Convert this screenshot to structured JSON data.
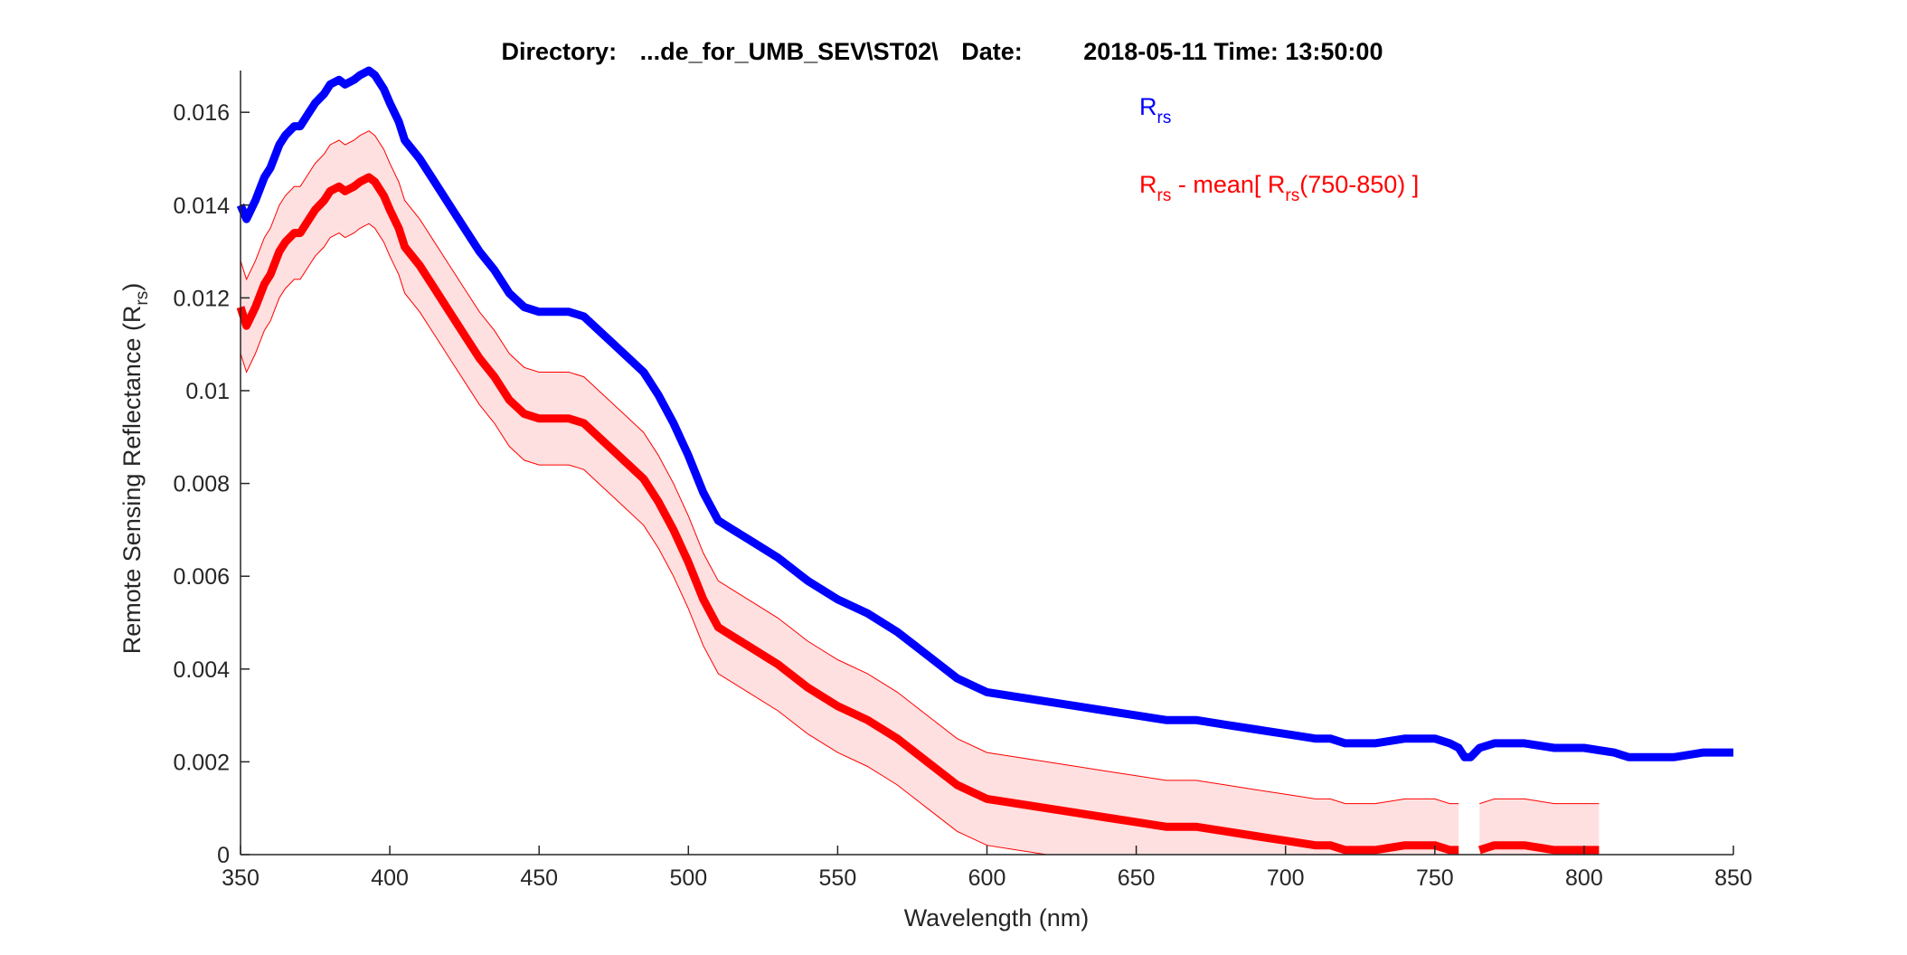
{
  "chart_data": {
    "type": "line",
    "title": {
      "directory_label": "Directory:",
      "directory_value": "...de_for_UMB_SEV\\ST02\\",
      "date_label": "Date:",
      "date_value": "2018-05-11 Time: 13:50:00"
    },
    "xlabel": "Wavelength (nm)",
    "ylabel": {
      "main": "Remote Sensing Reflectance (R",
      "sub": "rs",
      "close": ")"
    },
    "xlim": [
      350,
      850
    ],
    "ylim": [
      0,
      0.0169
    ],
    "xticks": [
      350,
      400,
      450,
      500,
      550,
      600,
      650,
      700,
      750,
      800,
      850
    ],
    "xtick_labels": [
      "350",
      "400",
      "450",
      "500",
      "550",
      "600",
      "650",
      "700",
      "750",
      "800",
      "850"
    ],
    "yticks": [
      0,
      0.002,
      0.004,
      0.006,
      0.008,
      0.01,
      0.012,
      0.014,
      0.016
    ],
    "ytick_labels": [
      "0",
      "0.002",
      "0.004",
      "0.006",
      "0.008",
      "0.01",
      "0.012",
      "0.014",
      "0.016"
    ],
    "grid": false,
    "legend_position": "top-right",
    "legend": [
      {
        "main": "R",
        "sub": "rs",
        "rest": "",
        "color": "#0000ff"
      },
      {
        "main": "R",
        "sub": "rs",
        "rest": " - mean[ R",
        "sub2": "rs",
        "rest2": "(750-850) ]",
        "color": "#ff0000"
      }
    ],
    "series": [
      {
        "color": "#0000ff",
        "x": [
          350,
          352,
          355,
          358,
          360,
          363,
          365,
          368,
          370,
          373,
          375,
          378,
          380,
          383,
          385,
          388,
          390,
          393,
          395,
          398,
          400,
          403,
          405,
          410,
          415,
          420,
          425,
          430,
          435,
          440,
          445,
          450,
          455,
          460,
          465,
          470,
          475,
          480,
          485,
          490,
          495,
          500,
          505,
          510,
          515,
          520,
          530,
          540,
          550,
          560,
          570,
          580,
          590,
          600,
          610,
          620,
          630,
          640,
          650,
          660,
          670,
          680,
          690,
          700,
          710,
          715,
          720,
          730,
          740,
          750,
          755,
          758,
          760,
          762,
          765,
          770,
          780,
          790,
          800,
          810,
          815,
          820,
          830,
          840,
          850
        ],
        "y": [
          0.014,
          0.0137,
          0.0141,
          0.0146,
          0.0148,
          0.0153,
          0.0155,
          0.0157,
          0.0157,
          0.016,
          0.0162,
          0.0164,
          0.0166,
          0.0167,
          0.0166,
          0.0167,
          0.0168,
          0.0169,
          0.0168,
          0.0165,
          0.0162,
          0.0158,
          0.0154,
          0.015,
          0.0145,
          0.014,
          0.0135,
          0.013,
          0.0126,
          0.0121,
          0.0118,
          0.0117,
          0.0117,
          0.0117,
          0.0116,
          0.0113,
          0.011,
          0.0107,
          0.0104,
          0.0099,
          0.0093,
          0.0086,
          0.0078,
          0.0072,
          0.007,
          0.0068,
          0.0064,
          0.0059,
          0.0055,
          0.0052,
          0.0048,
          0.0043,
          0.0038,
          0.0035,
          0.0034,
          0.0033,
          0.0032,
          0.0031,
          0.003,
          0.0029,
          0.0029,
          0.0028,
          0.0027,
          0.0026,
          0.0025,
          0.0025,
          0.0024,
          0.0024,
          0.0025,
          0.0025,
          0.0024,
          0.0023,
          0.0021,
          0.0021,
          0.0023,
          0.0024,
          0.0024,
          0.0023,
          0.0023,
          0.0022,
          0.0021,
          0.0021,
          0.0021,
          0.0022,
          0.0022
        ]
      },
      {
        "color": "#ff0000",
        "x": [
          350,
          352,
          355,
          358,
          360,
          363,
          365,
          368,
          370,
          373,
          375,
          378,
          380,
          383,
          385,
          388,
          390,
          393,
          395,
          398,
          400,
          403,
          405,
          410,
          415,
          420,
          425,
          430,
          435,
          440,
          445,
          450,
          455,
          460,
          465,
          470,
          475,
          480,
          485,
          490,
          495,
          500,
          505,
          510,
          515,
          520,
          530,
          540,
          550,
          560,
          570,
          580,
          590,
          600,
          610,
          620,
          630,
          640,
          650,
          660,
          670,
          680,
          690,
          700,
          710,
          715,
          720,
          730,
          740,
          750,
          755,
          758,
          null,
          765,
          770,
          780,
          790,
          800,
          805
        ],
        "y": [
          0.0118,
          0.0114,
          0.0118,
          0.0123,
          0.0125,
          0.013,
          0.0132,
          0.0134,
          0.0134,
          0.0137,
          0.0139,
          0.0141,
          0.0143,
          0.0144,
          0.0143,
          0.0144,
          0.0145,
          0.0146,
          0.0145,
          0.0142,
          0.0139,
          0.0135,
          0.0131,
          0.0127,
          0.0122,
          0.0117,
          0.0112,
          0.0107,
          0.0103,
          0.0098,
          0.0095,
          0.0094,
          0.0094,
          0.0094,
          0.0093,
          0.009,
          0.0087,
          0.0084,
          0.0081,
          0.0076,
          0.007,
          0.0063,
          0.0055,
          0.0049,
          0.0047,
          0.0045,
          0.0041,
          0.0036,
          0.0032,
          0.0029,
          0.0025,
          0.002,
          0.0015,
          0.0012,
          0.0011,
          0.001,
          0.0009,
          0.0008,
          0.0007,
          0.0006,
          0.0006,
          0.0005,
          0.0004,
          0.0003,
          0.0002,
          0.0002,
          0.0001,
          0.0001,
          0.0002,
          0.0002,
          0.0001,
          0.0001,
          null,
          0.0001,
          0.0002,
          0.0002,
          0.0001,
          0.0001,
          0.0001
        ]
      }
    ],
    "band": {
      "color": "#ff0000",
      "offset": 0.001
    }
  }
}
